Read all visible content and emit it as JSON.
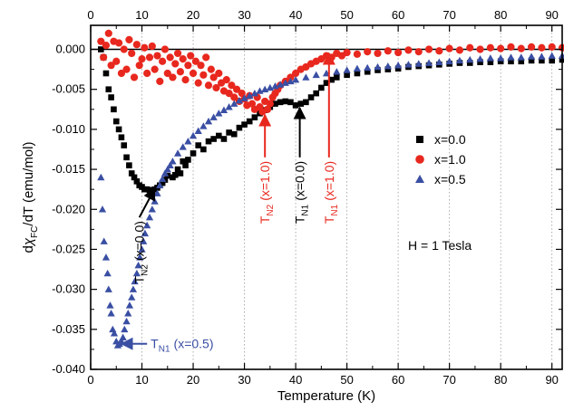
{
  "chart_data": {
    "type": "scatter",
    "xlabel": "Temperature (K)",
    "ylabel": "dχFC/dT (emu/mol)",
    "ylabel_parts": {
      "d1": "d",
      "chi": "χ",
      "sub": "FC",
      "rest": "/dT (emu/mol)"
    },
    "xlim": [
      0,
      92
    ],
    "ylim": [
      -0.04,
      0.003
    ],
    "x_ticks": [
      0,
      10,
      20,
      30,
      40,
      50,
      60,
      70,
      80,
      90
    ],
    "x_tick_labels": [
      "0",
      "10",
      "20",
      "30",
      "40",
      "50",
      "60",
      "70",
      "80",
      "90"
    ],
    "y_ticks": [
      0.0,
      -0.005,
      -0.01,
      -0.015,
      -0.02,
      -0.025,
      -0.03,
      -0.035,
      -0.04
    ],
    "y_tick_labels": [
      "0.000",
      "-0.005",
      "-0.010",
      "-0.015",
      "-0.020",
      "-0.025",
      "-0.030",
      "-0.035",
      "-0.040"
    ],
    "grid": "vertical dotted lines at x ticks",
    "zero_line": 0.0,
    "legend_position": "right",
    "series": [
      {
        "name": "x=0.0",
        "marker": "square",
        "color": "#000000",
        "points": [
          [
            2,
            0.0
          ],
          [
            2.5,
            -0.001
          ],
          [
            3,
            -0.003
          ],
          [
            3.5,
            -0.005
          ],
          [
            4,
            -0.006
          ],
          [
            4.5,
            -0.0075
          ],
          [
            5,
            -0.009
          ],
          [
            5.5,
            -0.01
          ],
          [
            6,
            -0.011
          ],
          [
            6.5,
            -0.012
          ],
          [
            7,
            -0.0135
          ],
          [
            7.5,
            -0.0145
          ],
          [
            8,
            -0.0155
          ],
          [
            8.5,
            -0.016
          ],
          [
            9,
            -0.0165
          ],
          [
            9.5,
            -0.017
          ],
          [
            10,
            -0.0172
          ],
          [
            10.5,
            -0.0175
          ],
          [
            11,
            -0.0175
          ],
          [
            11.5,
            -0.0176
          ],
          [
            12,
            -0.0176
          ],
          [
            12.5,
            -0.0175
          ],
          [
            13,
            -0.0173
          ],
          [
            13.5,
            -0.017
          ],
          [
            14,
            -0.0167
          ],
          [
            14.5,
            -0.0163
          ],
          [
            15,
            -0.0158
          ],
          [
            16,
            -0.016
          ],
          [
            16.5,
            -0.0157
          ],
          [
            17,
            -0.015
          ],
          [
            17.5,
            -0.0155
          ],
          [
            18,
            -0.014
          ],
          [
            18.5,
            -0.0145
          ],
          [
            19,
            -0.0138
          ],
          [
            20,
            -0.013
          ],
          [
            21,
            -0.012
          ],
          [
            22,
            -0.0125
          ],
          [
            23,
            -0.0115
          ],
          [
            24,
            -0.0112
          ],
          [
            25,
            -0.0108
          ],
          [
            26,
            -0.0112
          ],
          [
            27,
            -0.0104
          ],
          [
            28,
            -0.0106
          ],
          [
            29,
            -0.0098
          ],
          [
            30,
            -0.0094
          ],
          [
            31,
            -0.009
          ],
          [
            32,
            -0.0085
          ],
          [
            33,
            -0.008
          ],
          [
            34,
            -0.0076
          ],
          [
            35,
            -0.0072
          ],
          [
            36,
            -0.0068
          ],
          [
            37,
            -0.0066
          ],
          [
            38,
            -0.0065
          ],
          [
            39,
            -0.0066
          ],
          [
            40,
            -0.007
          ],
          [
            41,
            -0.0068
          ],
          [
            42,
            -0.0066
          ],
          [
            43,
            -0.006
          ],
          [
            44,
            -0.0055
          ],
          [
            45,
            -0.0048
          ],
          [
            46,
            -0.0042
          ],
          [
            47,
            -0.0038
          ],
          [
            48,
            -0.0035
          ],
          [
            50,
            -0.0032
          ],
          [
            52,
            -0.003
          ],
          [
            54,
            -0.0028
          ],
          [
            56,
            -0.0026
          ],
          [
            58,
            -0.0025
          ],
          [
            60,
            -0.0024
          ],
          [
            62,
            -0.0022
          ],
          [
            64,
            -0.0021
          ],
          [
            66,
            -0.002
          ],
          [
            68,
            -0.0019
          ],
          [
            70,
            -0.0018
          ],
          [
            72,
            -0.0017
          ],
          [
            74,
            -0.0017
          ],
          [
            76,
            -0.0016
          ],
          [
            78,
            -0.0016
          ],
          [
            80,
            -0.0015
          ],
          [
            82,
            -0.0015
          ],
          [
            84,
            -0.0015
          ],
          [
            86,
            -0.0014
          ],
          [
            88,
            -0.0014
          ],
          [
            90,
            -0.0014
          ],
          [
            92,
            -0.0013
          ]
        ]
      },
      {
        "name": "x=1.0",
        "marker": "circle",
        "color": "#e8281e",
        "points": [
          [
            2,
            0.001
          ],
          [
            2.5,
            -0.001
          ],
          [
            3,
            0.0005
          ],
          [
            3.5,
            0.002
          ],
          [
            4,
            -0.002
          ],
          [
            4.5,
            0.001
          ],
          [
            5,
            -0.0015
          ],
          [
            5.5,
            0.0008
          ],
          [
            6,
            -0.003
          ],
          [
            6.5,
            0.0
          ],
          [
            7,
            -0.0025
          ],
          [
            7.5,
            0.0012
          ],
          [
            8,
            -0.0005
          ],
          [
            8.5,
            -0.0035
          ],
          [
            9,
            0.0006
          ],
          [
            9.5,
            -0.002
          ],
          [
            10,
            -0.0012
          ],
          [
            10.5,
            0.0002
          ],
          [
            11,
            -0.003
          ],
          [
            11.5,
            -0.001
          ],
          [
            12,
            0.0004
          ],
          [
            12.5,
            -0.0025
          ],
          [
            13,
            -0.0008
          ],
          [
            13.5,
            -0.004
          ],
          [
            14,
            -0.0015
          ],
          [
            14.5,
            0.0
          ],
          [
            15,
            -0.003
          ],
          [
            15.5,
            -0.001
          ],
          [
            16,
            -0.0035
          ],
          [
            16.5,
            -0.0018
          ],
          [
            17,
            -0.0005
          ],
          [
            17.5,
            -0.0028
          ],
          [
            18,
            -0.0012
          ],
          [
            18.5,
            -0.0038
          ],
          [
            19,
            -0.002
          ],
          [
            19.5,
            -0.0008
          ],
          [
            20,
            -0.003
          ],
          [
            20.5,
            -0.0015
          ],
          [
            21,
            -0.0042
          ],
          [
            21.5,
            -0.002
          ],
          [
            22,
            -0.0032
          ],
          [
            22.5,
            -0.001
          ],
          [
            23,
            -0.0045
          ],
          [
            23.5,
            -0.0025
          ],
          [
            24,
            -0.0035
          ],
          [
            24.5,
            -0.0048
          ],
          [
            25,
            -0.003
          ],
          [
            25.5,
            -0.0042
          ],
          [
            26,
            -0.0052
          ],
          [
            26.5,
            -0.0038
          ],
          [
            27,
            -0.0055
          ],
          [
            27.5,
            -0.0045
          ],
          [
            28,
            -0.006
          ],
          [
            28.5,
            -0.005
          ],
          [
            29,
            -0.0065
          ],
          [
            29.5,
            -0.0055
          ],
          [
            30,
            -0.0062
          ],
          [
            30.5,
            -0.007
          ],
          [
            31,
            -0.0058
          ],
          [
            31.5,
            -0.0068
          ],
          [
            32,
            -0.0075
          ],
          [
            32.5,
            -0.006
          ],
          [
            33,
            -0.0072
          ],
          [
            33.5,
            -0.0078
          ],
          [
            34,
            -0.0065
          ],
          [
            34.5,
            -0.0075
          ],
          [
            35,
            -0.0068
          ],
          [
            35.5,
            -0.006
          ],
          [
            36,
            -0.0055
          ],
          [
            36.5,
            -0.005
          ],
          [
            37,
            -0.0045
          ],
          [
            38,
            -0.004
          ],
          [
            39,
            -0.0035
          ],
          [
            40,
            -0.003
          ],
          [
            41,
            -0.0025
          ],
          [
            42,
            -0.0022
          ],
          [
            43,
            -0.0018
          ],
          [
            44,
            -0.0015
          ],
          [
            45,
            -0.0012
          ],
          [
            46,
            -0.0008
          ],
          [
            47,
            -0.001
          ],
          [
            48,
            -0.0005
          ],
          [
            49,
            -0.0008
          ],
          [
            50,
            -0.0004
          ],
          [
            52,
            -0.0006
          ],
          [
            54,
            -0.0003
          ],
          [
            56,
            -0.0005
          ],
          [
            58,
            -0.0002
          ],
          [
            60,
            -0.0004
          ],
          [
            62,
            -0.0001
          ],
          [
            64,
            -0.0003
          ],
          [
            66,
            0.0
          ],
          [
            68,
            -0.0002
          ],
          [
            70,
            0.0001
          ],
          [
            72,
            -0.0001
          ],
          [
            74,
            0.0002
          ],
          [
            76,
            0.0
          ],
          [
            78,
            0.0002
          ],
          [
            80,
            0.0001
          ],
          [
            82,
            0.0003
          ],
          [
            84,
            0.0001
          ],
          [
            86,
            0.0003
          ],
          [
            88,
            0.0002
          ],
          [
            90,
            0.0003
          ],
          [
            92,
            0.0002
          ]
        ]
      },
      {
        "name": "x=0.5",
        "marker": "triangle",
        "color": "#3a4fa3",
        "points": [
          [
            2,
            -0.016
          ],
          [
            2.3,
            -0.02
          ],
          [
            2.6,
            -0.024
          ],
          [
            3,
            -0.026
          ],
          [
            3.3,
            -0.028
          ],
          [
            3.5,
            -0.03
          ],
          [
            3.8,
            -0.032
          ],
          [
            4,
            -0.033
          ],
          [
            4.3,
            -0.035
          ],
          [
            4.6,
            -0.0355
          ],
          [
            5,
            -0.0365
          ],
          [
            5.3,
            -0.037
          ],
          [
            5.6,
            -0.0368
          ],
          [
            6,
            -0.0365
          ],
          [
            6.3,
            -0.036
          ],
          [
            6.6,
            -0.035
          ],
          [
            7,
            -0.034
          ],
          [
            7.3,
            -0.033
          ],
          [
            7.6,
            -0.032
          ],
          [
            8,
            -0.031
          ],
          [
            8.3,
            -0.03
          ],
          [
            8.6,
            -0.029
          ],
          [
            9,
            -0.028
          ],
          [
            9.3,
            -0.027
          ],
          [
            9.6,
            -0.026
          ],
          [
            10,
            -0.025
          ],
          [
            10.3,
            -0.024
          ],
          [
            10.6,
            -0.023
          ],
          [
            11,
            -0.022
          ],
          [
            11.5,
            -0.021
          ],
          [
            12,
            -0.02
          ],
          [
            12.5,
            -0.019
          ],
          [
            13,
            -0.018
          ],
          [
            13.5,
            -0.017
          ],
          [
            14,
            -0.0162
          ],
          [
            14.5,
            -0.0155
          ],
          [
            15,
            -0.015
          ],
          [
            15.5,
            -0.0145
          ],
          [
            16,
            -0.014
          ],
          [
            17,
            -0.013
          ],
          [
            18,
            -0.0122
          ],
          [
            19,
            -0.0115
          ],
          [
            20,
            -0.0108
          ],
          [
            21,
            -0.0102
          ],
          [
            22,
            -0.0096
          ],
          [
            23,
            -0.009
          ],
          [
            24,
            -0.0085
          ],
          [
            25,
            -0.008
          ],
          [
            26,
            -0.0076
          ],
          [
            27,
            -0.0072
          ],
          [
            28,
            -0.0068
          ],
          [
            29,
            -0.0064
          ],
          [
            30,
            -0.0061
          ],
          [
            31,
            -0.0058
          ],
          [
            32,
            -0.0055
          ],
          [
            33,
            -0.0052
          ],
          [
            34,
            -0.005
          ],
          [
            35,
            -0.0048
          ],
          [
            36,
            -0.0046
          ],
          [
            37,
            -0.0044
          ],
          [
            38,
            -0.0042
          ],
          [
            39,
            -0.004
          ],
          [
            40,
            -0.0038
          ],
          [
            42,
            -0.0035
          ],
          [
            44,
            -0.0032
          ],
          [
            46,
            -0.003
          ],
          [
            48,
            -0.0028
          ],
          [
            50,
            -0.0026
          ],
          [
            52,
            -0.0024
          ],
          [
            54,
            -0.0023
          ],
          [
            56,
            -0.0022
          ],
          [
            58,
            -0.0021
          ],
          [
            60,
            -0.002
          ],
          [
            62,
            -0.0019
          ],
          [
            64,
            -0.0018
          ],
          [
            66,
            -0.0017
          ],
          [
            68,
            -0.0016
          ],
          [
            70,
            -0.0015
          ],
          [
            72,
            -0.0014
          ],
          [
            74,
            -0.0013
          ],
          [
            76,
            -0.0012
          ],
          [
            78,
            -0.0011
          ],
          [
            80,
            -0.0011
          ],
          [
            82,
            -0.001
          ],
          [
            84,
            -0.001
          ],
          [
            86,
            -0.0009
          ],
          [
            88,
            -0.0009
          ],
          [
            90,
            -0.0008
          ],
          [
            92,
            -0.0008
          ]
        ]
      }
    ],
    "field_label": "H = 1 Tesla",
    "annotations": [
      {
        "id": "tn2-x00",
        "main": "T",
        "sub": "N2",
        "detail": "(x=0.0)",
        "color": "#000000",
        "orientation": "rotated",
        "arrow_to": [
          12.5,
          -0.0174
        ],
        "arrow_from": [
          9.5,
          -0.021
        ]
      },
      {
        "id": "tn2-x10",
        "main": "T",
        "sub": "N2",
        "detail": "(x=1.0)",
        "color": "#e8281e",
        "orientation": "rotated",
        "arrow_to": [
          34.0,
          -0.0082
        ],
        "arrow_from": [
          34.0,
          -0.0135
        ]
      },
      {
        "id": "tn1-x00",
        "main": "T",
        "sub": "N1",
        "detail": "(x=0.0)",
        "color": "#000000",
        "orientation": "rotated",
        "arrow_to": [
          40.8,
          -0.0073
        ],
        "arrow_from": [
          40.8,
          -0.0135
        ]
      },
      {
        "id": "tn1-x10",
        "main": "T",
        "sub": "N1",
        "detail": "(x=1.0)",
        "color": "#e8281e",
        "orientation": "rotated",
        "arrow_to": [
          46.5,
          -0.0005
        ],
        "arrow_from": [
          46.5,
          -0.0135
        ]
      },
      {
        "id": "tn1-x05",
        "main": "T",
        "sub": "N1",
        "detail": "(x=0.5)",
        "color": "#3a4fa3",
        "orientation": "horizontal",
        "arrow_to": [
          6.0,
          -0.0368
        ],
        "arrow_from": [
          11.0,
          -0.0368
        ]
      }
    ]
  }
}
